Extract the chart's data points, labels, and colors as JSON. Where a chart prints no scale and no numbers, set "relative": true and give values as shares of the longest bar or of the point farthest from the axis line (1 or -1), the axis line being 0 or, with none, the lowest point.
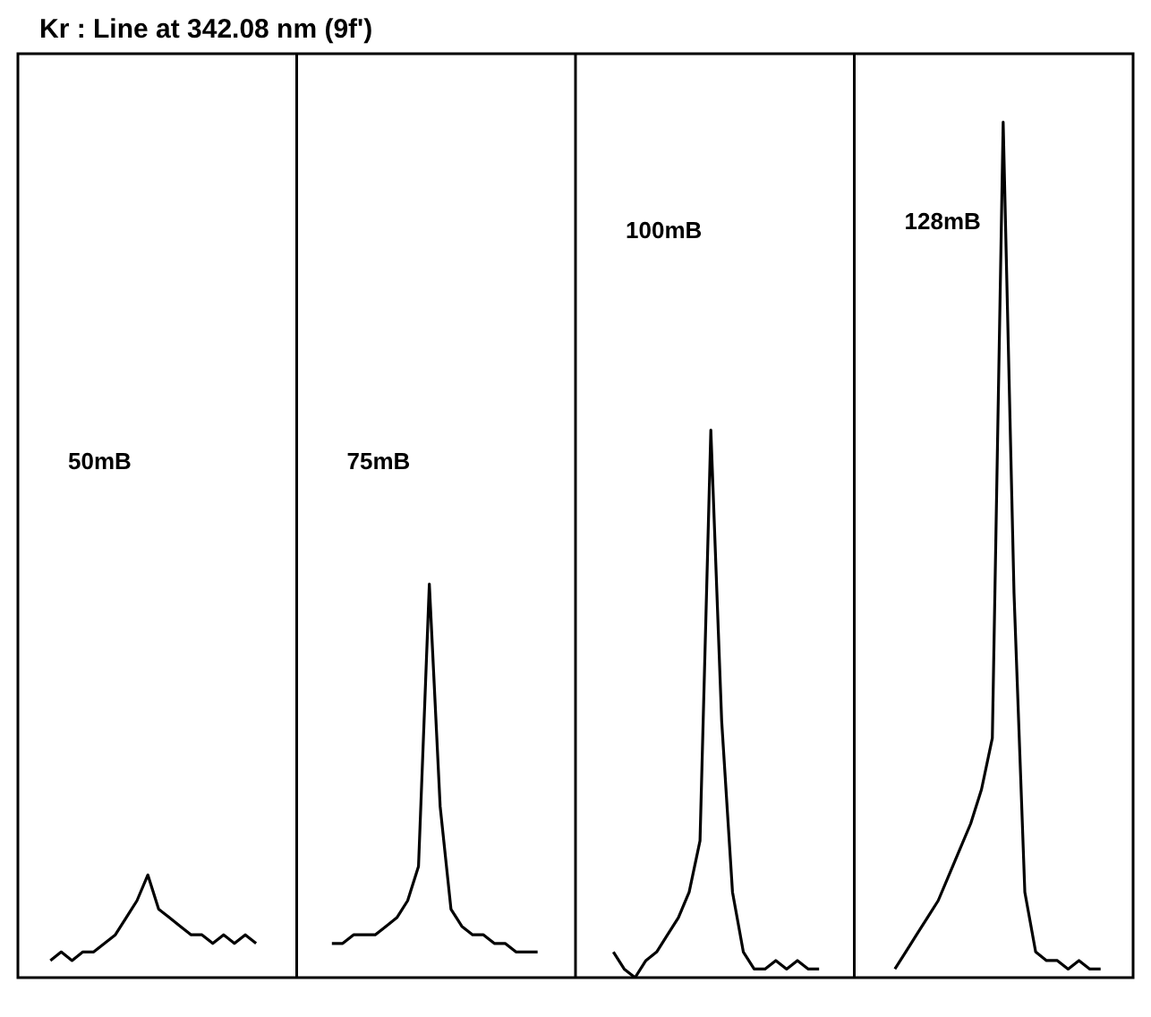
{
  "chart_data": {
    "type": "line",
    "title": "Kr :  Line at 342.08 nm  (9f')",
    "relative": true,
    "grid": false,
    "legend": false,
    "tick_labels": false,
    "marker": "none",
    "line_style": "solid",
    "categories": [
      null,
      null,
      null,
      null,
      null,
      null,
      null,
      null,
      null,
      null,
      null,
      null,
      null,
      null,
      null,
      null,
      null,
      null,
      null,
      null,
      null,
      null,
      null,
      null,
      null,
      null,
      null,
      null,
      null,
      null,
      null,
      null,
      null,
      null,
      null,
      null,
      null,
      null,
      null,
      null,
      null,
      null,
      null,
      null,
      null,
      null,
      null,
      null,
      null,
      null,
      null,
      null,
      null,
      null,
      null,
      null,
      null,
      null,
      null,
      null,
      null,
      null,
      null,
      null,
      null,
      null,
      null,
      null,
      null,
      null,
      null,
      null,
      null,
      null,
      null,
      null,
      null,
      null,
      null,
      null,
      null,
      null,
      null,
      null,
      null,
      null,
      null,
      null,
      null,
      null,
      null,
      null,
      null,
      null,
      null,
      null,
      null,
      null,
      null,
      null,
      null,
      null,
      null,
      null
    ],
    "series": [
      {
        "color": "#000000",
        "values": [
          null,
          null,
          null,
          0.02,
          0.03,
          0.02,
          0.03,
          0.03,
          0.04,
          0.05,
          0.07,
          0.09,
          0.12,
          0.08,
          0.07,
          0.06,
          0.05,
          0.05,
          0.04,
          0.05,
          0.04,
          0.05,
          0.04,
          null,
          null,
          null,
          null,
          null,
          null,
          null,
          null,
          null,
          null,
          null,
          null,
          null,
          null,
          null,
          null,
          null,
          null,
          null,
          null,
          null,
          null,
          null,
          null,
          null,
          null,
          null,
          null,
          null,
          null,
          null,
          null,
          null,
          null,
          null,
          null,
          null,
          null,
          null,
          null,
          null,
          null,
          null,
          null,
          null,
          null,
          null,
          null,
          null,
          null,
          null,
          null,
          null,
          null,
          null,
          null,
          null,
          null,
          null,
          null,
          null,
          null,
          null,
          null,
          null,
          null,
          null,
          null,
          null,
          null,
          null,
          null,
          null,
          null,
          null,
          null,
          null,
          null,
          null,
          null,
          null
        ]
      },
      {
        "color": "#000000",
        "values": [
          null,
          null,
          null,
          null,
          null,
          null,
          null,
          null,
          null,
          null,
          null,
          null,
          null,
          null,
          null,
          null,
          null,
          null,
          null,
          null,
          null,
          null,
          null,
          null,
          null,
          null,
          null,
          null,
          null,
          0.04,
          0.04,
          0.05,
          0.05,
          0.05,
          0.06,
          0.07,
          0.09,
          0.13,
          0.46,
          0.2,
          0.08,
          0.06,
          0.05,
          0.05,
          0.04,
          0.04,
          0.03,
          0.03,
          0.03,
          null,
          null,
          null,
          null,
          null,
          null,
          null,
          null,
          null,
          null,
          null,
          null,
          null,
          null,
          null,
          null,
          null,
          null,
          null,
          null,
          null,
          null,
          null,
          null,
          null,
          null,
          null,
          null,
          null,
          null,
          null,
          null,
          null,
          null,
          null,
          null,
          null,
          null,
          null,
          null,
          null,
          null,
          null,
          null,
          null,
          null,
          null,
          null,
          null,
          null,
          null,
          null,
          null,
          null,
          null
        ]
      },
      {
        "color": "#000000",
        "values": [
          null,
          null,
          null,
          null,
          null,
          null,
          null,
          null,
          null,
          null,
          null,
          null,
          null,
          null,
          null,
          null,
          null,
          null,
          null,
          null,
          null,
          null,
          null,
          null,
          null,
          null,
          null,
          null,
          null,
          null,
          null,
          null,
          null,
          null,
          null,
          null,
          null,
          null,
          null,
          null,
          null,
          null,
          null,
          null,
          null,
          null,
          null,
          null,
          null,
          null,
          null,
          null,
          null,
          null,
          null,
          0.03,
          0.01,
          0,
          0.02,
          0.03,
          0.05,
          0.07,
          0.1,
          0.16,
          0.64,
          0.3,
          0.1,
          0.03,
          0.01,
          0.01,
          0.02,
          0.01,
          0.02,
          0.01,
          0.01,
          null,
          null,
          null,
          null,
          null,
          null,
          null,
          null,
          null,
          null,
          null,
          null,
          null,
          null,
          null,
          null,
          null,
          null,
          null,
          null,
          null,
          null,
          null,
          null,
          null,
          null,
          null,
          null,
          null
        ]
      },
      {
        "color": "#000000",
        "values": [
          null,
          null,
          null,
          null,
          null,
          null,
          null,
          null,
          null,
          null,
          null,
          null,
          null,
          null,
          null,
          null,
          null,
          null,
          null,
          null,
          null,
          null,
          null,
          null,
          null,
          null,
          null,
          null,
          null,
          null,
          null,
          null,
          null,
          null,
          null,
          null,
          null,
          null,
          null,
          null,
          null,
          null,
          null,
          null,
          null,
          null,
          null,
          null,
          null,
          null,
          null,
          null,
          null,
          null,
          null,
          null,
          null,
          null,
          null,
          null,
          null,
          null,
          null,
          null,
          null,
          null,
          null,
          null,
          null,
          null,
          null,
          null,
          null,
          null,
          null,
          null,
          null,
          null,
          null,
          null,
          null,
          0.01,
          0.03,
          0.05,
          0.07,
          0.09,
          0.12,
          0.15,
          0.18,
          0.22,
          0.28,
          1.0,
          0.45,
          0.1,
          0.03,
          0.02,
          0.02,
          0.01,
          0.02,
          0.01,
          0.01,
          null,
          null,
          null
        ]
      }
    ],
    "annotations": [
      "50mB",
      "75mB",
      "100mB",
      "128mB"
    ]
  }
}
